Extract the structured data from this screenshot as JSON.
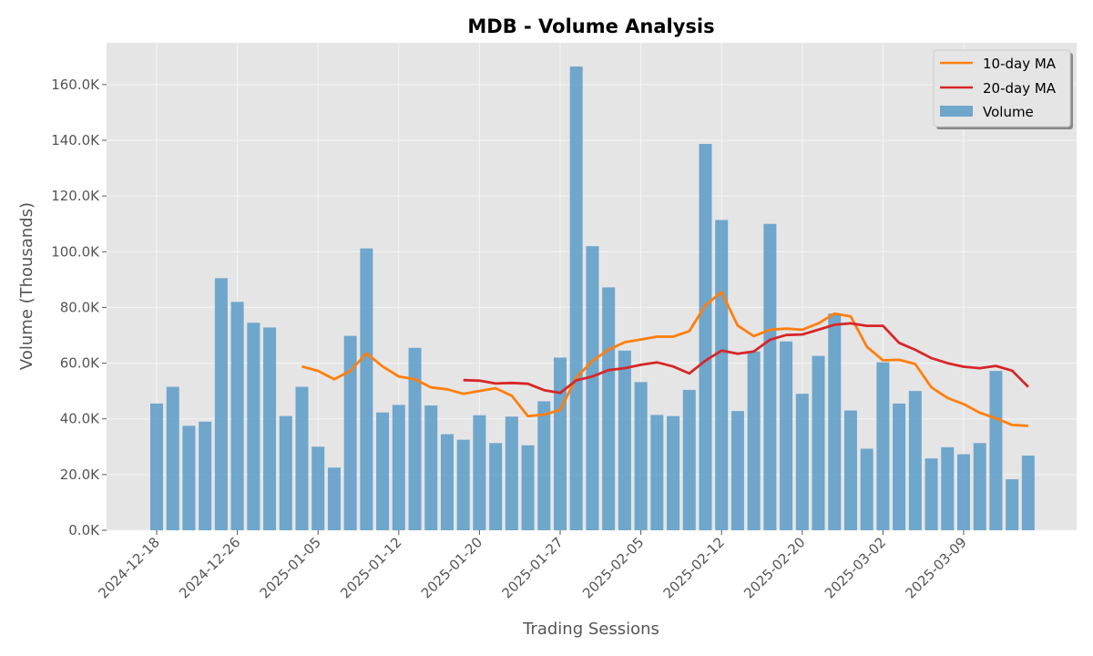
{
  "chart_data": {
    "type": "bar",
    "title": "MDB - Volume Analysis",
    "xlabel": "Trading Sessions",
    "ylabel": "Volume (Thousands)",
    "ylim": [
      0,
      175
    ],
    "yticks": [
      0,
      20,
      40,
      60,
      80,
      100,
      120,
      140,
      160
    ],
    "ytick_labels": [
      "0.0K",
      "20.0K",
      "40.0K",
      "60.0K",
      "80.0K",
      "100.0K",
      "120.0K",
      "140.0K",
      "160.0K"
    ],
    "xtick_labels": [
      "2024-12-18",
      "2024-12-26",
      "2025-01-05",
      "2025-01-12",
      "2025-01-20",
      "2025-01-27",
      "2025-02-05",
      "2025-02-12",
      "2025-02-20",
      "2025-03-02",
      "2025-03-09"
    ],
    "xtick_indices": [
      0,
      5,
      10,
      15,
      20,
      25,
      30,
      35,
      40,
      45,
      50
    ],
    "grid": true,
    "legend_position": "top-right",
    "colors": {
      "volume": "#5b9bc8",
      "ma10": "#ff7f0e",
      "ma20": "#d62728",
      "plot_bg": "#e5e5e5",
      "grid": "#f5f5f5"
    },
    "series": [
      {
        "name": "Volume",
        "kind": "bar",
        "values": [
          45.5,
          51.5,
          37.5,
          39,
          90.5,
          82,
          74.5,
          72.8,
          41,
          51.5,
          30,
          22.5,
          69.8,
          101.2,
          42.3,
          45,
          65.5,
          44.8,
          34.5,
          32.5,
          41.3,
          31.3,
          40.8,
          30.5,
          46.3,
          62,
          166.5,
          102,
          87.2,
          64.5,
          53.2,
          41.4,
          41,
          50.4,
          138.7,
          111.4,
          42.8,
          64.2,
          110,
          67.8,
          49,
          62.6,
          77.8,
          43,
          29.3,
          60.3,
          45.5,
          50,
          25.8,
          29.8,
          27.3,
          31.3,
          57.2,
          18.3,
          26.8
        ]
      },
      {
        "name": "10-day MA",
        "kind": "line",
        "start_index": 9,
        "values": [
          58.8,
          57.2,
          54.2,
          57.2,
          63.5,
          58.8,
          55.2,
          54.2,
          51.3,
          50.6,
          49,
          50,
          51,
          48.3,
          41,
          41.5,
          43.2,
          54.8,
          60.8,
          64.8,
          67.5,
          68.5,
          69.5,
          69.5,
          71.5,
          80.8,
          85.5,
          73.5,
          69.7,
          72,
          72.4,
          72,
          74.3,
          77.8,
          76.8,
          65.9,
          61,
          61.2,
          59.7,
          51.3,
          47.5,
          45.3,
          42.2,
          40.2,
          37.8,
          37.5
        ]
      },
      {
        "name": "20-day MA",
        "kind": "line",
        "start_index": 19,
        "values": [
          53.9,
          53.7,
          52.7,
          52.9,
          52.6,
          50.3,
          49.3,
          53.8,
          55.2,
          57.5,
          58.2,
          59.4,
          60.3,
          58.8,
          56.3,
          60.9,
          64.5,
          63.4,
          64.2,
          68.4,
          70.1,
          70.3,
          72,
          73.8,
          74.3,
          73.4,
          73.4,
          67.3,
          64.8,
          61.8,
          60,
          58.7,
          58.2,
          59,
          57.3,
          51.5
        ]
      }
    ]
  }
}
